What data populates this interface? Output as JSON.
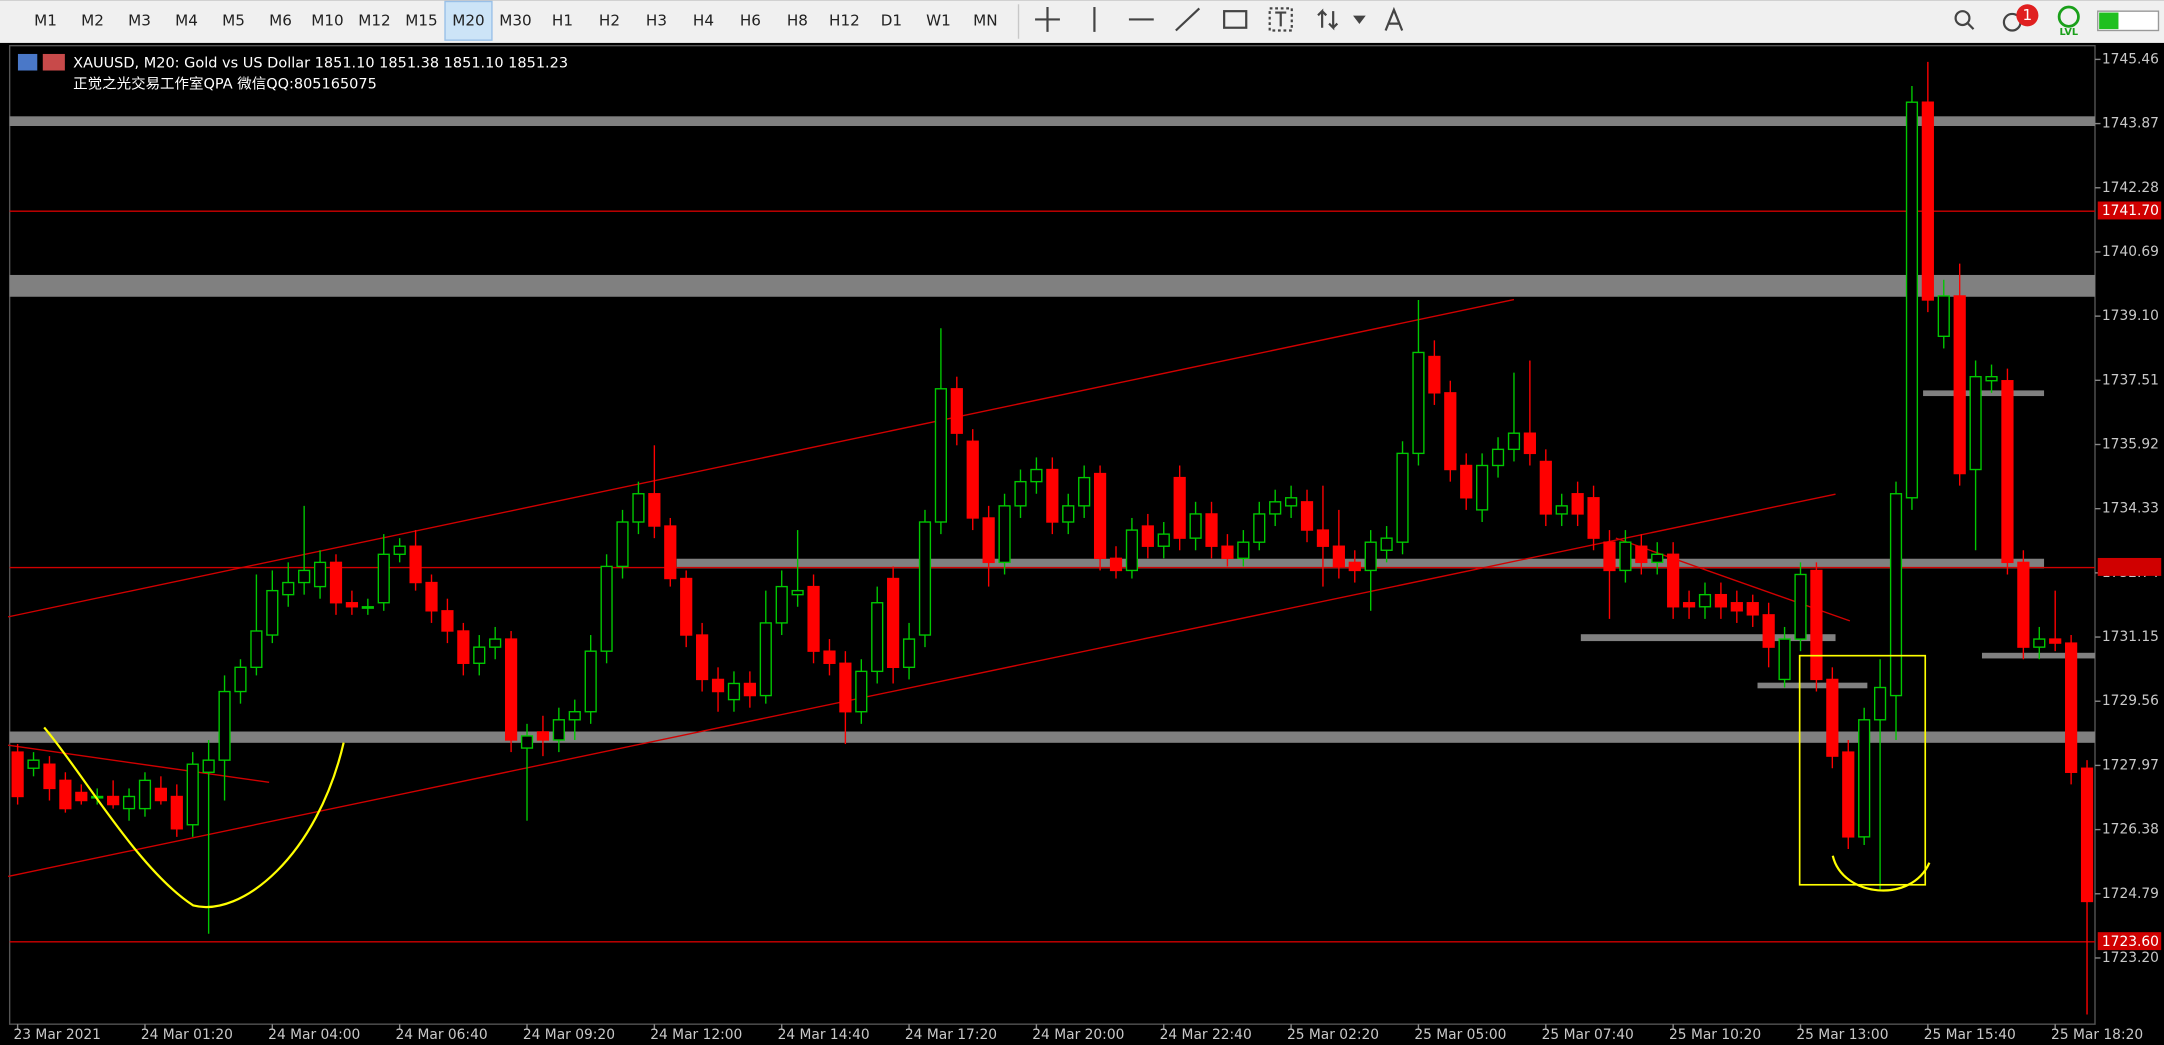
{
  "toolbar": {
    "timeframes": [
      "M1",
      "M2",
      "M3",
      "M4",
      "M5",
      "M6",
      "M10",
      "M12",
      "M15",
      "M20",
      "M30",
      "H1",
      "H2",
      "H3",
      "H4",
      "H6",
      "H8",
      "H12",
      "D1",
      "W1",
      "MN"
    ],
    "selected_timeframe": "M20",
    "notification_count": "1",
    "status_label": "LVL"
  },
  "chart_data": {
    "type": "candlestick",
    "title": "XAUUSD, M20:  Gold vs US Dollar  1851.10 1851.38 1851.10 1851.23",
    "subtitle": "正觉之光交易工作室QPA 微信QQ:805165075",
    "open": [
      1728.3,
      1727.9,
      1728.0,
      1727.6,
      1727.3,
      1727.2,
      1727.2,
      1726.9,
      1726.9,
      1727.4,
      1727.2,
      1726.5,
      1727.8,
      1728.1,
      1729.8,
      1730.4,
      1731.2,
      1732.2,
      1732.5,
      1732.4,
      1733.0,
      1732.0,
      1731.9,
      1732.0,
      1733.2,
      1733.4,
      1732.5,
      1731.8,
      1731.3,
      1730.5,
      1730.9,
      1731.1,
      1728.4,
      1728.8,
      1728.6,
      1729.1,
      1729.3,
      1730.8,
      1732.9,
      1734.0,
      1734.7,
      1733.9,
      1732.6,
      1731.2,
      1730.1,
      1729.6,
      1730.0,
      1729.7,
      1731.5,
      1732.2,
      1732.4,
      1730.8,
      1730.5,
      1729.3,
      1730.3,
      1732.6,
      1730.4,
      1731.2,
      1734.0,
      1737.3,
      1736.0,
      1734.1,
      1733.0,
      1734.4,
      1735.0,
      1735.3,
      1734.0,
      1734.4,
      1735.2,
      1733.1,
      1732.8,
      1733.9,
      1733.4,
      1735.1,
      1733.6,
      1734.2,
      1733.4,
      1733.1,
      1733.5,
      1734.2,
      1734.4,
      1734.5,
      1733.8,
      1733.4,
      1733.0,
      1732.8,
      1733.3,
      1733.5,
      1735.7,
      1738.1,
      1737.2,
      1735.4,
      1734.3,
      1735.4,
      1735.8,
      1736.2,
      1735.5,
      1734.2,
      1734.7,
      1734.6,
      1733.5,
      1732.8,
      1733.4,
      1733.0,
      1733.2,
      1732.0,
      1731.9,
      1732.2,
      1732.0,
      1732.0,
      1731.7,
      1730.1,
      1731.1,
      1732.8,
      1730.1,
      1728.3,
      1726.2,
      1729.1,
      1729.7,
      1734.6,
      1744.4,
      1738.6,
      1739.6,
      1735.3,
      1737.5,
      1737.5,
      1733.0,
      1730.9,
      1731.1,
      1731.0,
      1727.9
    ],
    "high": [
      1728.5,
      1728.3,
      1728.2,
      1727.8,
      1727.5,
      1727.4,
      1727.6,
      1727.4,
      1727.8,
      1727.7,
      1727.5,
      1728.3,
      1728.6,
      1730.2,
      1730.6,
      1732.7,
      1732.8,
      1733.0,
      1734.4,
      1733.3,
      1733.2,
      1732.3,
      1732.1,
      1733.7,
      1733.6,
      1733.8,
      1732.7,
      1732.1,
      1731.5,
      1731.2,
      1731.4,
      1731.3,
      1729.0,
      1729.2,
      1729.4,
      1729.6,
      1731.2,
      1733.2,
      1734.3,
      1735.0,
      1735.9,
      1734.1,
      1732.8,
      1731.5,
      1730.4,
      1730.3,
      1730.3,
      1732.3,
      1732.8,
      1733.8,
      1732.7,
      1731.1,
      1730.8,
      1730.6,
      1732.4,
      1732.9,
      1731.5,
      1734.3,
      1738.8,
      1737.6,
      1736.3,
      1734.4,
      1734.7,
      1735.3,
      1735.6,
      1735.6,
      1734.7,
      1735.4,
      1735.4,
      1733.4,
      1734.1,
      1734.2,
      1734.0,
      1735.4,
      1734.5,
      1734.5,
      1733.7,
      1733.8,
      1734.5,
      1734.8,
      1734.9,
      1734.8,
      1734.9,
      1734.3,
      1733.3,
      1733.8,
      1733.9,
      1736.0,
      1739.5,
      1738.5,
      1737.5,
      1735.7,
      1735.7,
      1736.1,
      1737.7,
      1738.0,
      1735.8,
      1734.7,
      1735.0,
      1734.9,
      1733.8,
      1733.8,
      1733.7,
      1733.5,
      1733.5,
      1732.3,
      1732.5,
      1732.5,
      1732.3,
      1732.2,
      1732.0,
      1731.4,
      1733.0,
      1733.0,
      1730.4,
      1728.6,
      1729.4,
      1730.6,
      1735.0,
      1744.8,
      1745.4,
      1740.0,
      1740.4,
      1738.0,
      1737.9,
      1737.8,
      1733.3,
      1731.4,
      1732.3,
      1731.2,
      1728.1
    ],
    "low": [
      1727.0,
      1727.7,
      1727.1,
      1726.8,
      1727.0,
      1727.0,
      1726.9,
      1726.6,
      1726.7,
      1727.0,
      1726.2,
      1726.2,
      1723.8,
      1727.1,
      1729.5,
      1730.2,
      1731.0,
      1731.9,
      1732.2,
      1732.1,
      1731.7,
      1731.7,
      1731.7,
      1731.8,
      1733.0,
      1732.3,
      1731.5,
      1731.0,
      1730.2,
      1730.2,
      1730.6,
      1728.3,
      1726.6,
      1728.2,
      1728.3,
      1728.6,
      1729.0,
      1730.5,
      1732.6,
      1733.7,
      1733.6,
      1732.4,
      1730.9,
      1729.8,
      1729.3,
      1729.3,
      1729.4,
      1729.5,
      1731.2,
      1731.9,
      1730.5,
      1730.2,
      1728.5,
      1729.0,
      1730.0,
      1730.0,
      1730.1,
      1730.9,
      1733.7,
      1735.9,
      1733.8,
      1732.4,
      1732.7,
      1734.1,
      1734.7,
      1733.7,
      1733.7,
      1734.1,
      1732.8,
      1732.6,
      1732.6,
      1733.1,
      1733.1,
      1733.3,
      1733.3,
      1733.1,
      1732.9,
      1732.9,
      1733.3,
      1733.9,
      1734.1,
      1733.5,
      1732.4,
      1732.6,
      1732.5,
      1731.8,
      1733.0,
      1733.2,
      1735.4,
      1736.9,
      1735.0,
      1734.3,
      1734.0,
      1735.1,
      1735.5,
      1735.4,
      1733.9,
      1733.9,
      1733.9,
      1733.3,
      1731.6,
      1732.5,
      1732.7,
      1732.7,
      1731.6,
      1731.6,
      1731.6,
      1731.6,
      1731.5,
      1731.4,
      1730.4,
      1729.9,
      1730.8,
      1729.8,
      1727.9,
      1725.9,
      1726.0,
      1724.9,
      1728.6,
      1734.3,
      1739.2,
      1738.3,
      1734.9,
      1733.3,
      1737.2,
      1732.7,
      1730.6,
      1730.6,
      1730.8,
      1727.5,
      1721.8
    ],
    "close": [
      1727.2,
      1728.1,
      1727.4,
      1726.9,
      1727.1,
      1727.2,
      1727.0,
      1727.2,
      1727.6,
      1727.1,
      1726.4,
      1728.0,
      1728.1,
      1729.8,
      1730.4,
      1731.3,
      1732.3,
      1732.5,
      1732.8,
      1733.0,
      1732.0,
      1731.9,
      1731.9,
      1733.2,
      1733.4,
      1732.5,
      1731.8,
      1731.3,
      1730.5,
      1730.9,
      1731.1,
      1728.6,
      1728.7,
      1728.6,
      1729.1,
      1729.3,
      1730.8,
      1732.9,
      1734.0,
      1734.7,
      1733.9,
      1732.6,
      1731.2,
      1730.1,
      1729.8,
      1730.0,
      1729.7,
      1731.5,
      1732.4,
      1732.3,
      1730.8,
      1730.5,
      1729.3,
      1730.3,
      1732.0,
      1730.4,
      1731.1,
      1734.0,
      1737.3,
      1736.2,
      1734.1,
      1733.0,
      1734.4,
      1735.0,
      1735.3,
      1734.0,
      1734.4,
      1735.1,
      1733.1,
      1732.8,
      1733.8,
      1733.4,
      1733.7,
      1733.6,
      1734.2,
      1733.4,
      1733.1,
      1733.5,
      1734.2,
      1734.5,
      1734.6,
      1733.8,
      1733.4,
      1732.9,
      1732.8,
      1733.5,
      1733.6,
      1735.7,
      1738.2,
      1737.2,
      1735.3,
      1734.6,
      1735.4,
      1735.8,
      1736.2,
      1735.7,
      1734.2,
      1734.4,
      1734.2,
      1733.6,
      1732.8,
      1733.5,
      1733.0,
      1733.2,
      1731.9,
      1731.9,
      1732.2,
      1731.9,
      1731.8,
      1731.7,
      1730.9,
      1731.1,
      1732.7,
      1730.1,
      1728.2,
      1726.2,
      1729.1,
      1729.9,
      1734.7,
      1744.4,
      1739.5,
      1739.6,
      1735.2,
      1737.6,
      1737.6,
      1733.0,
      1730.9,
      1731.1,
      1731.0,
      1727.8,
      1724.6
    ],
    "up_color": "#00c800",
    "down_color": "#ff0000",
    "ylim": [
      1721.56,
      1745.8
    ],
    "yticks": [
      1745.46,
      1743.87,
      1742.28,
      1740.69,
      {
        "value": 1739.1,
        "label": "1739.10"
      },
      1737.51,
      1735.92,
      1734.33,
      1732.74,
      1731.15,
      1729.56,
      1727.97,
      1726.38,
      1724.79,
      {
        "value": 1723.2,
        "label": "1723.20"
      }
    ],
    "xticks": [
      {
        "value": 0,
        "label": "23 Mar 2021"
      },
      {
        "value": 8,
        "label": "24 Mar 01:20"
      },
      {
        "value": 16,
        "label": "24 Mar 04:00"
      },
      {
        "value": 24,
        "label": "24 Mar 06:40"
      },
      {
        "value": 32,
        "label": "24 Mar 09:20"
      },
      {
        "value": 40,
        "label": "24 Mar 12:00"
      },
      {
        "value": 48,
        "label": "24 Mar 14:40"
      },
      {
        "value": 56,
        "label": "24 Mar 17:20"
      },
      {
        "value": 64,
        "label": "24 Mar 20:00"
      },
      {
        "value": 72,
        "label": "24 Mar 22:40"
      },
      {
        "value": 80,
        "label": "25 Mar 02:20"
      },
      {
        "value": 88,
        "label": "25 Mar 05:00"
      },
      {
        "value": 96,
        "label": "25 Mar 07:40"
      },
      {
        "value": 104,
        "label": "25 Mar 10:20"
      },
      {
        "value": 112,
        "label": "25 Mar 13:00"
      },
      {
        "value": 120,
        "label": "25 Mar 15:40"
      },
      {
        "value": 128,
        "label": "25 Mar 18:20"
      }
    ],
    "zone_color": "#808080",
    "zones": [
      {
        "from": 1743.81,
        "to": 1744.05
      },
      {
        "from": 1739.58,
        "to": 1740.12
      },
      {
        "from": 1728.53,
        "to": 1728.81
      },
      {
        "from": 1732.85,
        "to": 1733.09,
        "start": 41.4,
        "end": 127.3
      },
      {
        "from": 1731.05,
        "to": 1731.22,
        "start": 98.2,
        "end": 114.2
      },
      {
        "from": 1729.88,
        "to": 1730.02,
        "start": 109.3,
        "end": 116.2
      },
      {
        "from": 1737.12,
        "to": 1737.26,
        "start": 119.7,
        "end": 127.3
      },
      {
        "from": 1730.62,
        "to": 1730.76,
        "start": 123.4,
        "end": 130.5
      }
    ],
    "line_color": "#d00000",
    "hlines": [
      {
        "value": 1741.7,
        "label": "1741.70"
      },
      {
        "value": 1732.87
      },
      {
        "value": 1723.6,
        "label": "1723.60"
      }
    ],
    "trendlines": [
      {
        "x1": -0.6,
        "y1": 1731.65,
        "x2": 94,
        "y2": 1739.51
      },
      {
        "x1": -0.6,
        "y1": 1725.22,
        "x2": 114.2,
        "y2": 1734.69
      },
      {
        "x1": -0.6,
        "y1": 1728.47,
        "x2": 15.8,
        "y2": 1727.55
      },
      {
        "x1": 100.4,
        "y1": 1733.6,
        "x2": 115.1,
        "y2": 1731.55
      }
    ]
  }
}
